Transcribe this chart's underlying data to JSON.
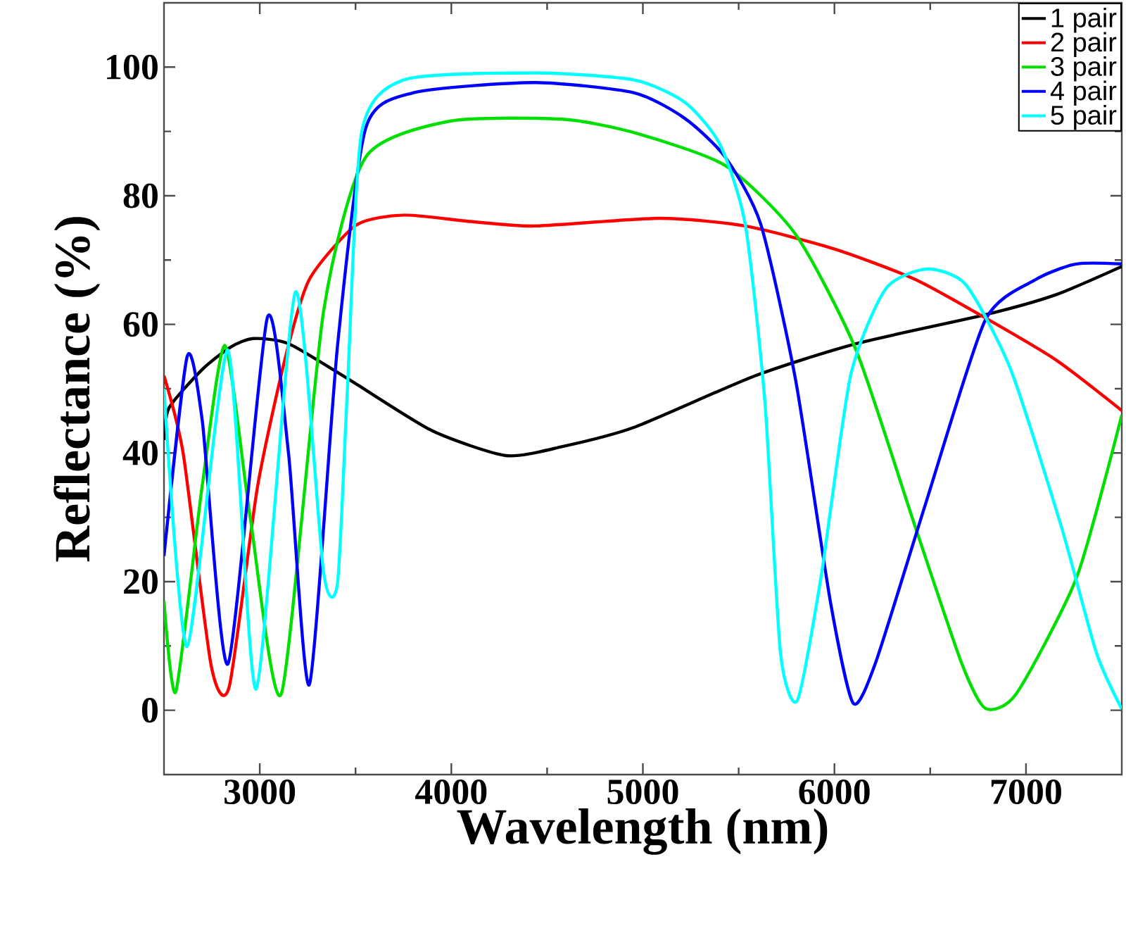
{
  "chart_data": {
    "type": "line",
    "xlabel": "Wavelength (nm)",
    "ylabel": "Reflectance (%)",
    "xlim": [
      2500,
      7500
    ],
    "ylim": [
      -10,
      110
    ],
    "xticks": [
      3000,
      4000,
      5000,
      6000,
      7000
    ],
    "yticks": [
      0,
      20,
      40,
      60,
      80,
      100
    ],
    "grid": false,
    "legend": "top right",
    "marker": "none",
    "line_style": "solid",
    "series": [
      {
        "name": "1 pair",
        "color": "#000000",
        "x": [
          2500,
          2526,
          2700,
          2850,
          2966,
          3150,
          3457,
          3897,
          4286,
          4580,
          4955,
          5585,
          6113,
          6788,
          7155,
          7500
        ],
        "values": [
          42,
          47,
          53,
          56.5,
          57.8,
          57,
          51.6,
          43.5,
          39.6,
          41,
          44,
          52,
          57,
          61.5,
          64.6,
          69
        ]
      },
      {
        "name": "2 pair",
        "color": "#ff0000",
        "x": [
          2500,
          2600,
          2746,
          2841,
          2988,
          3135,
          3259,
          3502,
          3751,
          4100,
          4433,
          5086,
          5534,
          6003,
          6421,
          6788,
          7155,
          7500
        ],
        "values": [
          52,
          40,
          7,
          3.7,
          34.7,
          55,
          67,
          75.4,
          77,
          76,
          75.3,
          76.5,
          75.3,
          71.7,
          67,
          61,
          54.5,
          46.6
        ]
      },
      {
        "name": "3 pair",
        "color": "#00e000",
        "x": [
          2500,
          2562,
          2700,
          2819,
          2950,
          3113,
          3333,
          3553,
          3993,
          4580,
          4955,
          5430,
          5797,
          6113,
          6421,
          6663,
          6788,
          6950,
          7265,
          7500
        ],
        "values": [
          17,
          2.9,
          35,
          56.7,
          30,
          2.6,
          62,
          86,
          91.6,
          91.9,
          89.8,
          84.7,
          74,
          56,
          28.6,
          7.4,
          0.3,
          2.6,
          20.7,
          45.9
        ]
      },
      {
        "name": "4 pair",
        "color": "#0000ff",
        "x": [
          2500,
          2621,
          2700,
          2834,
          3039,
          3150,
          3259,
          3406,
          3553,
          3800,
          4433,
          4955,
          5220,
          5430,
          5615,
          5797,
          5980,
          6098,
          6216,
          6480,
          6788,
          7053,
          7264,
          7500
        ],
        "values": [
          24,
          55,
          45,
          7.2,
          61,
          40,
          4,
          56.7,
          90.5,
          96,
          97.6,
          96,
          92,
          86,
          75.6,
          51.4,
          16.7,
          1.1,
          7.5,
          32.5,
          60.7,
          67,
          69.4,
          69.4
        ]
      },
      {
        "name": "5 pair",
        "color": "#00ffff",
        "x": [
          2500,
          2621,
          2834,
          2981,
          3186,
          3333,
          3406,
          3457,
          3531,
          3750,
          4433,
          4955,
          5220,
          5402,
          5534,
          5637,
          5718,
          5806,
          5930,
          6084,
          6267,
          6480,
          6685,
          6920,
          7184,
          7367,
          7500
        ],
        "values": [
          50,
          9.9,
          56,
          3.3,
          65,
          21.5,
          19.8,
          49.5,
          89.7,
          98,
          99.1,
          98,
          94.5,
          88,
          75.6,
          48,
          9,
          1.5,
          20.7,
          52,
          65.5,
          68.6,
          66.2,
          53,
          28.6,
          9,
          0.2
        ]
      }
    ]
  }
}
